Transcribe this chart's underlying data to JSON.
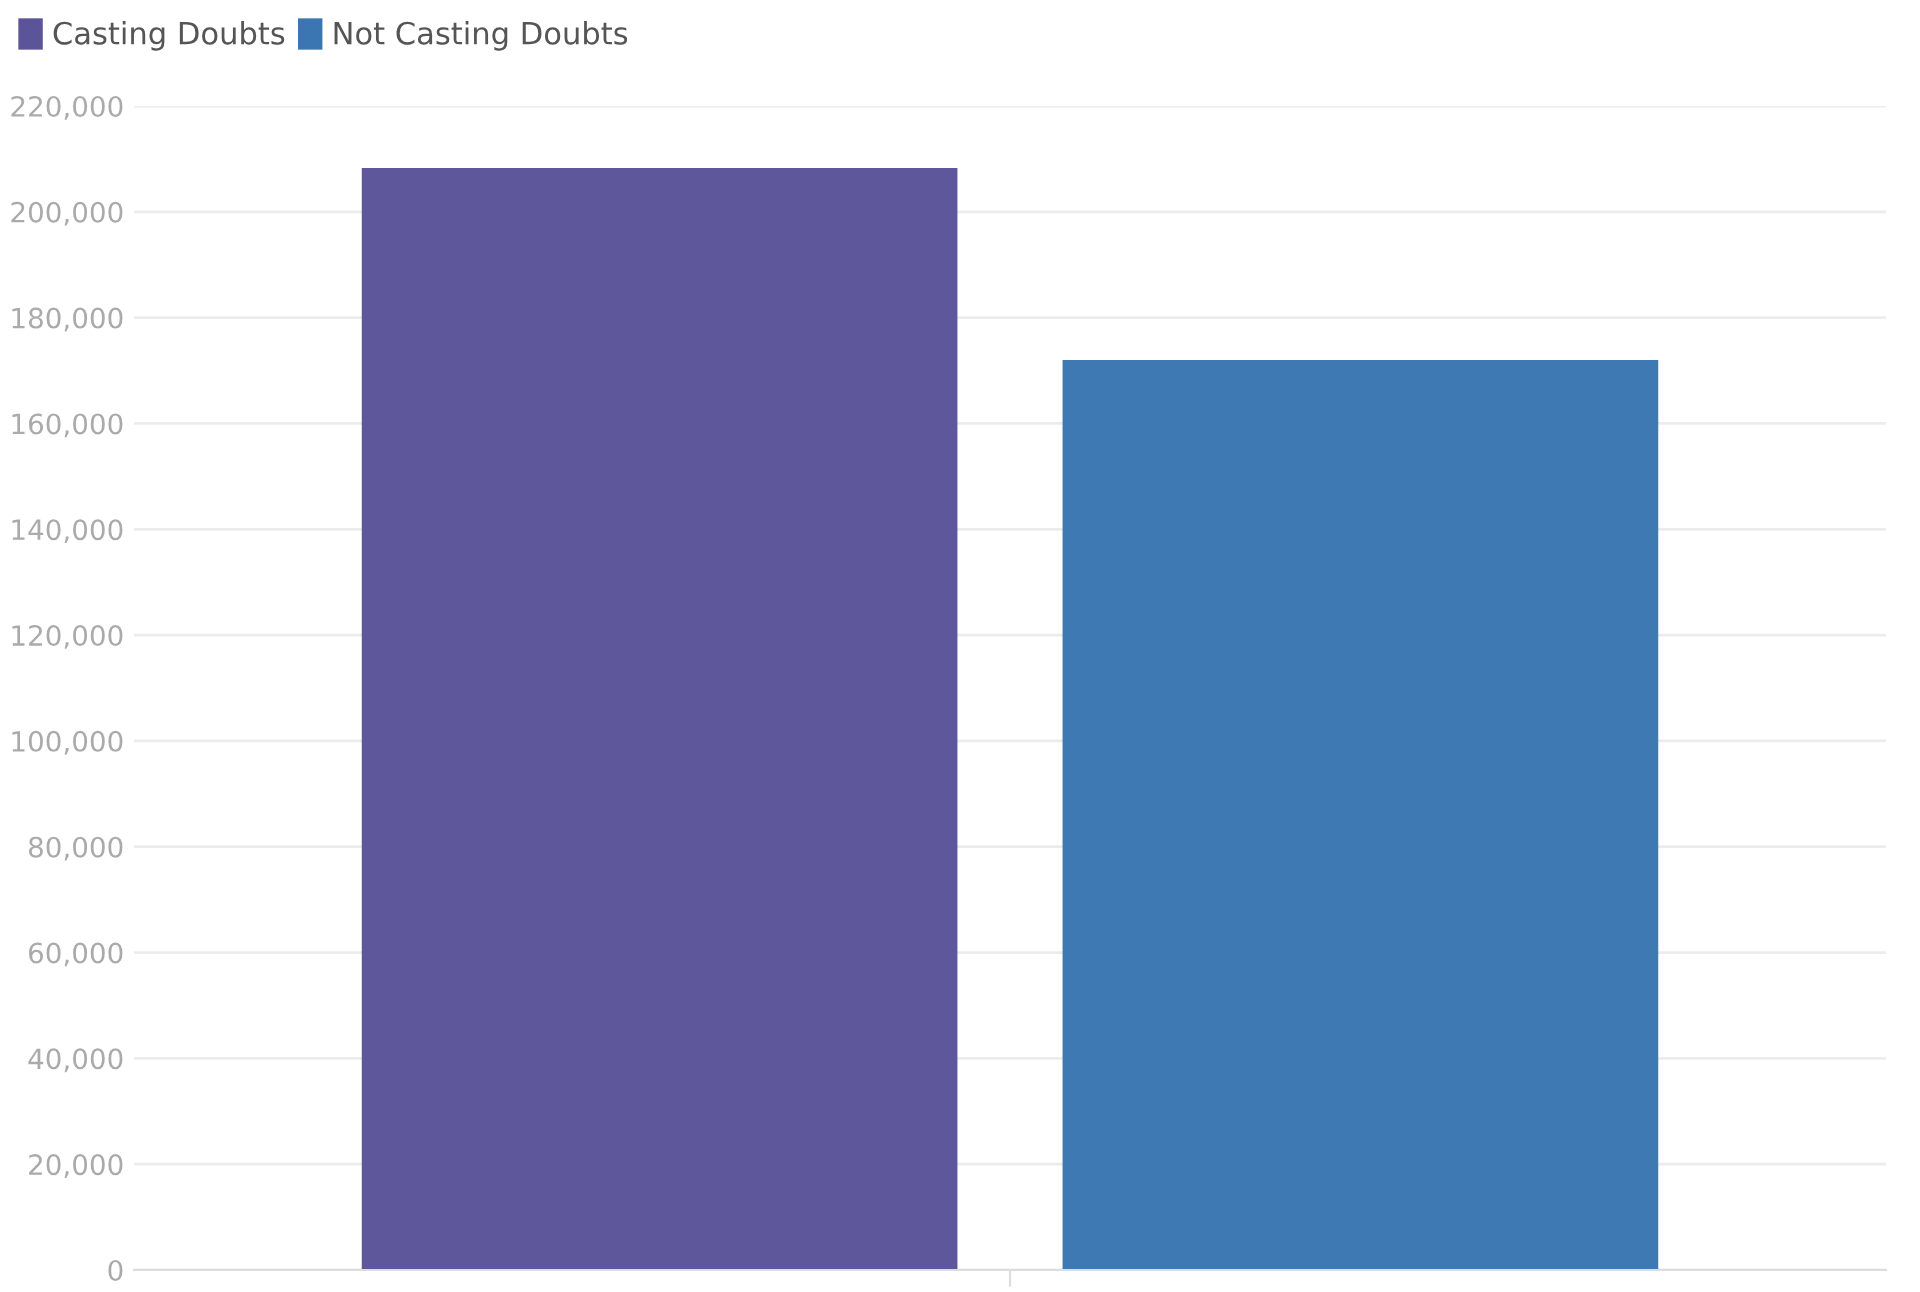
{
  "chart_data": {
    "type": "bar",
    "categories": [
      null
    ],
    "series": [
      {
        "name": "Casting Doubts",
        "color": "#5c5499",
        "values": [
          208300
        ]
      },
      {
        "name": "Not Casting Doubts",
        "color": "#3b76b3",
        "values": [
          172000
        ]
      }
    ],
    "ylim": [
      0,
      220000
    ],
    "yticks": [
      {
        "value": 0,
        "label": "0"
      },
      {
        "value": 20000,
        "label": "20,000"
      },
      {
        "value": 40000,
        "label": "40,000"
      },
      {
        "value": 60000,
        "label": "60,000"
      },
      {
        "value": 80000,
        "label": "80,000"
      },
      {
        "value": 100000,
        "label": "100,000"
      },
      {
        "value": 120000,
        "label": "120,000"
      },
      {
        "value": 140000,
        "label": "140,000"
      },
      {
        "value": 160000,
        "label": "160,000"
      },
      {
        "value": 180000,
        "label": "180,000"
      },
      {
        "value": 200000,
        "label": "200,000"
      },
      {
        "value": 220000,
        "label": "220,000"
      }
    ],
    "grid": "y",
    "legend": "top left"
  }
}
